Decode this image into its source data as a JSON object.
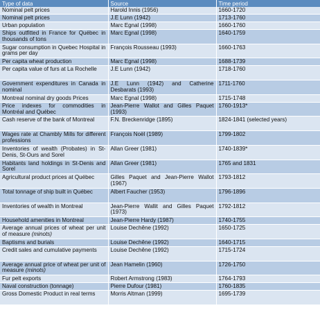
{
  "headers": [
    "Type of data",
    "Source",
    "Time period"
  ],
  "rows": [
    {
      "type": "Nominal pelt prices",
      "source": "Harold Innis (1956)",
      "period": "1660-1720"
    },
    {
      "type": "Nominal pelt prices",
      "source": "J.E Lunn (1942)",
      "period": "1713-1760"
    },
    {
      "type": "Urban population",
      "source": "Marc Egnal (1998)",
      "period": "1660-1760"
    },
    {
      "type": "Ships outfitted in France for Québec in thousands of tons",
      "source": "Marc Egnal (1998)",
      "period": "1640-1759"
    },
    {
      "type": "Sugar consumption in Quebec Hospital in grams per day",
      "source": "François Rousseau (1993)",
      "period": "1660-1763"
    },
    {
      "type": "Per capita wheat production",
      "source": "Marc Egnal (1998)",
      "period": "1688-1739"
    },
    {
      "type": "Per capita value of furs at La Rochelle",
      "source": "J.E Lunn (1942)",
      "period": "1718-1760"
    },
    {
      "type": "Government expenditures in Canada in nominal",
      "source": "J.E Lunn (1942) and Catherine Desbarats (1993)",
      "period": "1711-1760"
    },
    {
      "type": "Montreal nominal dry goods Prices",
      "source": "Marc Egnal (1998)",
      "period": "1715-1748"
    },
    {
      "type": "Price indexes for commodities in Montréal and Québec",
      "source": "Jean-Pierre Wallot and Gilles Paquet (1993)",
      "period": "1760-1913*"
    },
    {
      "type": "Cash reserve of the bank of Montreal",
      "source": "F.N. Breckenridge (1895)",
      "period": "1824-1841 (selected years)"
    },
    {
      "type": "Wages rate at Chambly Mills for different professions",
      "source": "François Noël (1989)",
      "period": "1799-1802"
    },
    {
      "type": "Inventories of wealth (Probates) in St-Denis, St-Ours and Sorel",
      "source": "Allan Greer (1981)",
      "period": "1740-1839*"
    },
    {
      "type": "Habitants land holdings in St-Denis and Sorel",
      "source": "Allan Greer (1981)",
      "period": "1765 and 1831"
    },
    {
      "type": "Agricultural product prices at Québec",
      "source": "Gilles Paquet and Jean-Pierre Wallot (1967)",
      "period": "1793-1812"
    },
    {
      "type": "Total tonnage of ship built in Québec",
      "source": "Albert Faucher (1953)",
      "period": "1796-1896"
    },
    {
      "type": "Inventories of wealth in Montreal",
      "source": "Jean-Pierre Wallit and Gilles Paquet (1973)",
      "period": "1792-1812"
    },
    {
      "type": "Household amenities in Montreal",
      "source": "Jean-Pierre Hardy (1987)",
      "period": "1740-1755"
    },
    {
      "type": "Average annual prices of wheat per unit of measure",
      "type_italic": "(minots)",
      "source": "Louise Dechêne (1992)",
      "period": "1650-1725"
    },
    {
      "type": "Baptisms and burials",
      "source": "Louise Dechêne (1992)",
      "period": "1640-1715"
    },
    {
      "type": "Credit sales and cumulative payments",
      "source": "Louise Dechêne (1992)",
      "period": "1715-1724"
    },
    {
      "type": "Average annual price of wheat per unit of measure",
      "type_italic": "(minots)",
      "source": "Jean Hamelin (1960)",
      "period": "1726-1750"
    },
    {
      "type": "Fur pelt exports",
      "source": "Robert Armstrong (1983)",
      "period": "1764-1793"
    },
    {
      "type": "Naval construction (tonnage)",
      "source": "Pierre Dufour (1981)",
      "period": "1760-1835"
    },
    {
      "type": "Gross Domestic Product in real terms",
      "source": "Morris Altman (1999)",
      "period": "1695-1739"
    }
  ]
}
